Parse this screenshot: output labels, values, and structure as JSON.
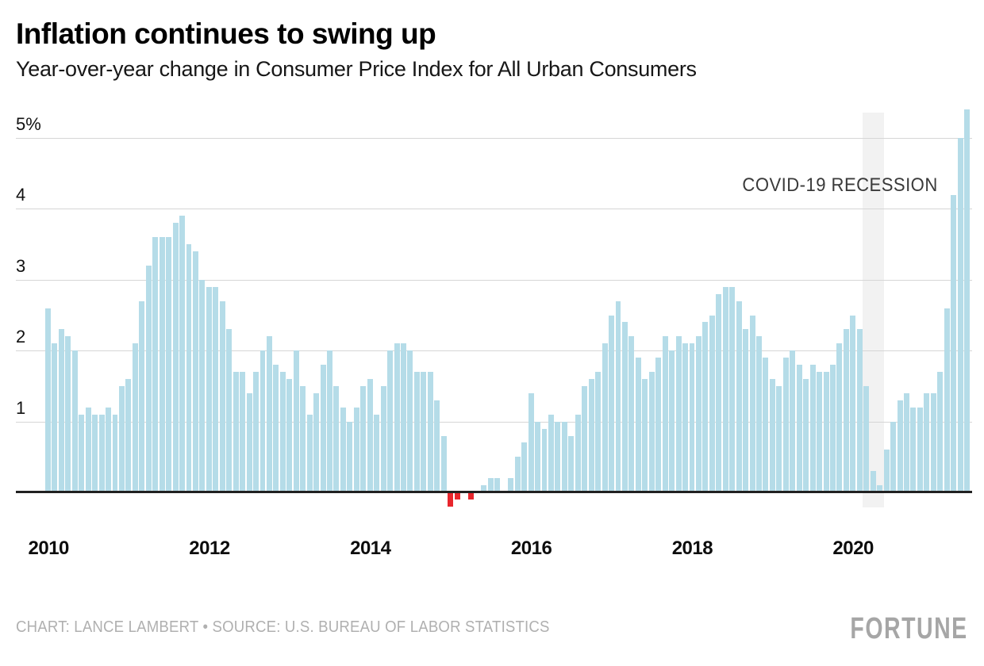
{
  "header": {
    "title": "Inflation continues to swing up",
    "subtitle": "Year-over-year change in Consumer Price Index for All Urban Consumers"
  },
  "chart_data": {
    "type": "bar",
    "title": "Inflation continues to swing up",
    "subtitle": "Year-over-year change in Consumer Price Index for All Urban Consumers",
    "unit": "%",
    "start_month": "2010-01",
    "end_month": "2021-06",
    "series": [
      {
        "year": "2010",
        "values": [
          2.6,
          2.1,
          2.3,
          2.2,
          2.0,
          1.1,
          1.2,
          1.1,
          1.1,
          1.2,
          1.1,
          1.5
        ]
      },
      {
        "year": "2011",
        "values": [
          1.6,
          2.1,
          2.7,
          3.2,
          3.6,
          3.6,
          3.6,
          3.8,
          3.9,
          3.5,
          3.4,
          3.0
        ]
      },
      {
        "year": "2012",
        "values": [
          2.9,
          2.9,
          2.7,
          2.3,
          1.7,
          1.7,
          1.4,
          1.7,
          2.0,
          2.2,
          1.8,
          1.7
        ]
      },
      {
        "year": "2013",
        "values": [
          1.6,
          2.0,
          1.5,
          1.1,
          1.4,
          1.8,
          2.0,
          1.5,
          1.2,
          1.0,
          1.2,
          1.5
        ]
      },
      {
        "year": "2014",
        "values": [
          1.6,
          1.1,
          1.5,
          2.0,
          2.1,
          2.1,
          2.0,
          1.7,
          1.7,
          1.7,
          1.3,
          0.8
        ]
      },
      {
        "year": "2015",
        "values": [
          -0.2,
          -0.1,
          0.0,
          -0.1,
          0.0,
          0.1,
          0.2,
          0.2,
          0.0,
          0.2,
          0.5,
          0.7
        ]
      },
      {
        "year": "2016",
        "values": [
          1.4,
          1.0,
          0.9,
          1.1,
          1.0,
          1.0,
          0.8,
          1.1,
          1.5,
          1.6,
          1.7,
          2.1
        ]
      },
      {
        "year": "2017",
        "values": [
          2.5,
          2.7,
          2.4,
          2.2,
          1.9,
          1.6,
          1.7,
          1.9,
          2.2,
          2.0,
          2.2,
          2.1
        ]
      },
      {
        "year": "2018",
        "values": [
          2.1,
          2.2,
          2.4,
          2.5,
          2.8,
          2.9,
          2.9,
          2.7,
          2.3,
          2.5,
          2.2,
          1.9
        ]
      },
      {
        "year": "2019",
        "values": [
          1.6,
          1.5,
          1.9,
          2.0,
          1.8,
          1.6,
          1.8,
          1.7,
          1.7,
          1.8,
          2.1,
          2.3
        ]
      },
      {
        "year": "2020",
        "values": [
          2.5,
          2.3,
          1.5,
          0.3,
          0.1,
          0.6,
          1.0,
          1.3,
          1.4,
          1.2,
          1.2,
          1.4
        ]
      },
      {
        "year": "2021",
        "values": [
          1.4,
          1.7,
          2.6,
          4.2,
          5.0,
          5.4
        ]
      }
    ],
    "y_axis": {
      "ticks": [
        1,
        2,
        3,
        4,
        5
      ],
      "tick_labels": [
        "1",
        "2",
        "3",
        "4",
        "5%"
      ],
      "range": [
        -0.3,
        5.4
      ],
      "grid": true
    },
    "x_axis": {
      "tick_years": [
        "2010",
        "2012",
        "2014",
        "2016",
        "2018",
        "2020"
      ]
    },
    "annotation": {
      "label": "COVID-19 RECESSION",
      "band_start": "2020-03",
      "band_end": "2020-05"
    },
    "colors": {
      "positive_bar": "#b5dce8",
      "negative_bar": "#e8262d",
      "recession_band": "#f2f2f2",
      "gridline": "#d6d6d6",
      "baseline": "#212121"
    }
  },
  "footer": {
    "credit": "CHART: LANCE LAMBERT • SOURCE: U.S. BUREAU OF LABOR STATISTICS",
    "brand": "FORTUNE"
  }
}
